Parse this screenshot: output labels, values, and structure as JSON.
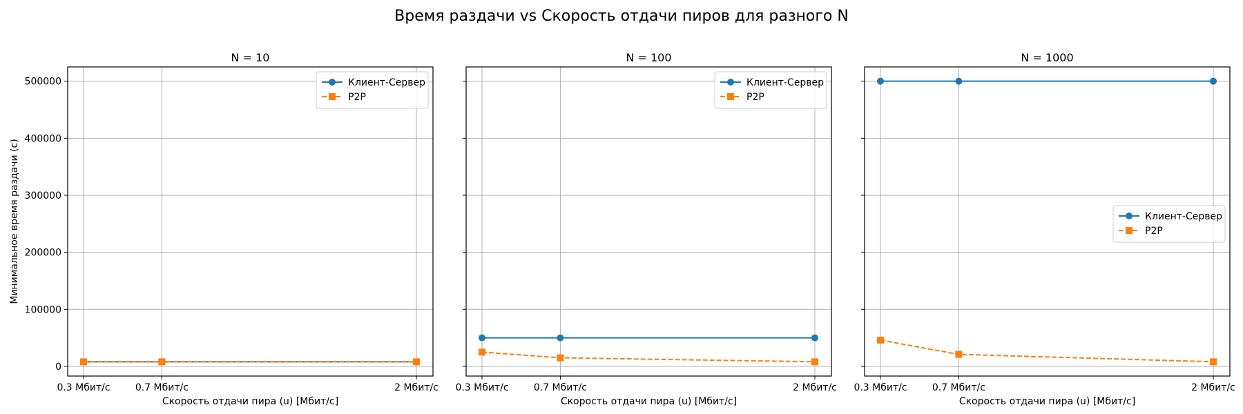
{
  "figure": {
    "title": "Время раздачи vs Скорость отдачи пиров для разного N"
  },
  "colors": {
    "client_server": "#1f77b4",
    "p2p": "#ff7f0e",
    "grid": "#b0b0b0"
  },
  "chart_data": [
    {
      "type": "line",
      "title": "N = 10",
      "xlabel": "Скорость отдачи пира (u) [Мбит/с]",
      "ylabel": "Минимальное время раздачи (с)",
      "x": [
        0.3,
        0.7,
        2
      ],
      "xtick_labels": [
        "0.3 Мбит/с",
        "0.7 Мбит/с",
        "2 Мбит/с"
      ],
      "yticks": [
        0,
        100000,
        200000,
        300000,
        400000,
        500000
      ],
      "ylim": [
        -17000,
        525000
      ],
      "grid": true,
      "legend_position": "upper right",
      "series": [
        {
          "name": "Клиент-Сервер",
          "values": [
            8000,
            8000,
            8000
          ],
          "marker": "circle",
          "style": "solid"
        },
        {
          "name": "P2P",
          "values": [
            8000,
            8000,
            8000
          ],
          "marker": "square",
          "style": "dashed"
        }
      ]
    },
    {
      "type": "line",
      "title": "N = 100",
      "xlabel": "Скорость отдачи пира (u) [Мбит/с]",
      "ylabel": "",
      "x": [
        0.3,
        0.7,
        2
      ],
      "xtick_labels": [
        "0.3 Мбит/с",
        "0.7 Мбит/с",
        "2 Мбит/с"
      ],
      "yticks": [
        0,
        100000,
        200000,
        300000,
        400000,
        500000
      ],
      "ylim": [
        -17000,
        525000
      ],
      "grid": true,
      "legend_position": "upper right",
      "series": [
        {
          "name": "Клиент-Сервер",
          "values": [
            50000,
            50000,
            50000
          ],
          "marker": "circle",
          "style": "solid"
        },
        {
          "name": "P2P",
          "values": [
            25000,
            15000,
            8000
          ],
          "marker": "square",
          "style": "dashed"
        }
      ]
    },
    {
      "type": "line",
      "title": "N = 1000",
      "xlabel": "Скорость отдачи пира (u) [Мбит/с]",
      "ylabel": "",
      "x": [
        0.3,
        0.7,
        2
      ],
      "xtick_labels": [
        "0.3 Мбит/с",
        "0.7 Мбит/с",
        "2 Мбит/с"
      ],
      "yticks": [
        0,
        100000,
        200000,
        300000,
        400000,
        500000
      ],
      "ylim": [
        -17000,
        525000
      ],
      "grid": true,
      "legend_position": "center right",
      "series": [
        {
          "name": "Клиент-Сервер",
          "values": [
            500000,
            500000,
            500000
          ],
          "marker": "circle",
          "style": "solid"
        },
        {
          "name": "P2P",
          "values": [
            46000,
            21000,
            8000
          ],
          "marker": "square",
          "style": "dashed"
        }
      ]
    }
  ]
}
